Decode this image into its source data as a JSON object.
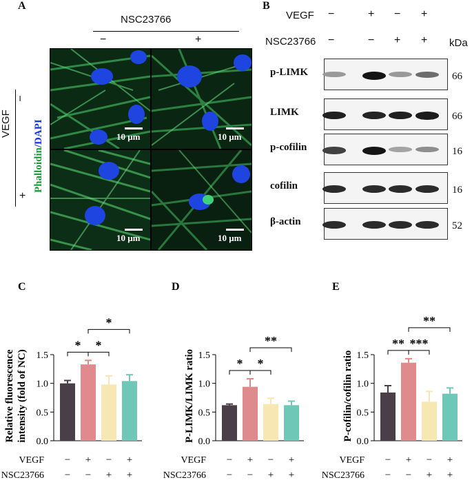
{
  "panelA": {
    "letter": "A",
    "treatment": "NSC23766",
    "col_minus": "−",
    "col_plus": "+",
    "row_label": "VEGF",
    "row_minus": "−",
    "row_plus": "+",
    "stain_green": "Phalloidin",
    "stain_sep": "/",
    "stain_blue": "DAPI",
    "scalebar_label": "10 μm",
    "colors": {
      "green": "#1a9a3a",
      "blue": "#1a3adc"
    }
  },
  "panelB": {
    "letter": "B",
    "vegf_label": "VEGF",
    "nsc_label": "NSC23766",
    "unit": "kDa",
    "vegf_signs": [
      "−",
      "+",
      "−",
      "+"
    ],
    "nsc_signs": [
      "−",
      "−",
      "+",
      "+"
    ],
    "blots": [
      {
        "name": "p-LIMK",
        "kda": "66",
        "intensity": [
          0.35,
          0.95,
          0.35,
          0.55
        ]
      },
      {
        "name": "LIMK",
        "kda": "66",
        "intensity": [
          0.9,
          0.88,
          0.9,
          0.92
        ]
      },
      {
        "name": "p-cofilin",
        "kda": "16",
        "intensity": [
          0.75,
          0.95,
          0.3,
          0.4
        ]
      },
      {
        "name": "cofilin",
        "kda": "16",
        "intensity": [
          0.85,
          0.85,
          0.85,
          0.85
        ]
      },
      {
        "name": "β-actin",
        "kda": "52",
        "intensity": [
          0.85,
          0.85,
          0.85,
          0.85
        ]
      }
    ]
  },
  "chart_data": [
    {
      "type": "bar",
      "letter": "C",
      "ylabel": "Relative fluorescence intensity (fold of NC)",
      "ylim": [
        0,
        1.5
      ],
      "yticks": [
        "0.0",
        "0.5",
        "1.0",
        "1.5"
      ],
      "values": [
        1.0,
        1.33,
        0.98,
        1.04
      ],
      "errors": [
        0.05,
        0.07,
        0.15,
        0.11
      ],
      "colors": [
        "#4a3f48",
        "#df8a8c",
        "#f7e7b3",
        "#6fc7b7"
      ],
      "significance": [
        {
          "from": 0,
          "to": 1,
          "label": "*"
        },
        {
          "from": 1,
          "to": 2,
          "label": "*"
        },
        {
          "from": 1,
          "to": 3,
          "label": "*"
        }
      ]
    },
    {
      "type": "bar",
      "letter": "D",
      "ylabel": "P-LIMK/LIMK ratio",
      "ylim": [
        0,
        1.5
      ],
      "yticks": [
        "0.0",
        "0.5",
        "1.0",
        "1.5"
      ],
      "values": [
        0.62,
        0.94,
        0.64,
        0.62
      ],
      "errors": [
        0.02,
        0.14,
        0.1,
        0.07
      ],
      "colors": [
        "#4a3f48",
        "#df8a8c",
        "#f7e7b3",
        "#6fc7b7"
      ],
      "significance": [
        {
          "from": 0,
          "to": 1,
          "label": "*"
        },
        {
          "from": 1,
          "to": 2,
          "label": "*"
        },
        {
          "from": 1,
          "to": 3,
          "label": "**"
        }
      ]
    },
    {
      "type": "bar",
      "letter": "E",
      "ylabel": "P-cofilin/cofilin ratio",
      "ylim": [
        0,
        1.5
      ],
      "yticks": [
        "0.0",
        "0.5",
        "1.0",
        "1.5"
      ],
      "values": [
        0.84,
        1.36,
        0.68,
        0.82
      ],
      "errors": [
        0.12,
        0.07,
        0.18,
        0.1
      ],
      "colors": [
        "#4a3f48",
        "#df8a8c",
        "#f7e7b3",
        "#6fc7b7"
      ],
      "significance": [
        {
          "from": 0,
          "to": 1,
          "label": "**"
        },
        {
          "from": 1,
          "to": 2,
          "label": "***"
        },
        {
          "from": 1,
          "to": 3,
          "label": "**"
        }
      ]
    }
  ],
  "bar_axis": {
    "vegf_label": "VEGF",
    "nsc_label": "NSC23766",
    "vegf_signs": [
      "−",
      "+",
      "−",
      "+"
    ],
    "nsc_signs": [
      "−",
      "−",
      "+",
      "+"
    ]
  }
}
